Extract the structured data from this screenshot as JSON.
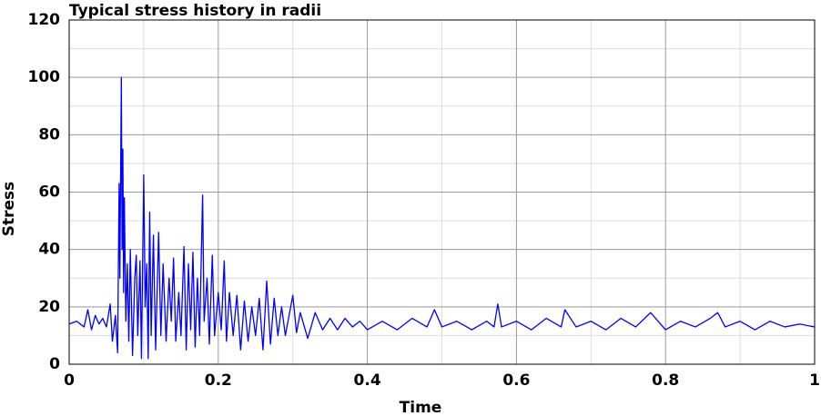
{
  "chart_data": {
    "type": "line",
    "title": "Typical stress history in radii",
    "x_label": "Time",
    "y_label": "Stress",
    "x": [
      0,
      0.01,
      0.02,
      0.025,
      0.03,
      0.035,
      0.04,
      0.045,
      0.05,
      0.055,
      0.058,
      0.062,
      0.065,
      0.067,
      0.068,
      0.07,
      0.071,
      0.072,
      0.073,
      0.074,
      0.076,
      0.078,
      0.08,
      0.082,
      0.085,
      0.088,
      0.09,
      0.092,
      0.095,
      0.097,
      0.1,
      0.102,
      0.104,
      0.106,
      0.108,
      0.11,
      0.113,
      0.116,
      0.12,
      0.123,
      0.126,
      0.13,
      0.134,
      0.137,
      0.14,
      0.143,
      0.147,
      0.15,
      0.154,
      0.157,
      0.16,
      0.163,
      0.166,
      0.169,
      0.172,
      0.175,
      0.179,
      0.181,
      0.185,
      0.188,
      0.192,
      0.195,
      0.2,
      0.204,
      0.208,
      0.211,
      0.215,
      0.22,
      0.225,
      0.23,
      0.235,
      0.24,
      0.245,
      0.25,
      0.255,
      0.26,
      0.265,
      0.27,
      0.275,
      0.28,
      0.285,
      0.29,
      0.3,
      0.305,
      0.31,
      0.32,
      0.33,
      0.34,
      0.35,
      0.36,
      0.37,
      0.38,
      0.39,
      0.4,
      0.42,
      0.44,
      0.46,
      0.48,
      0.49,
      0.5,
      0.52,
      0.54,
      0.56,
      0.57,
      0.575,
      0.58,
      0.6,
      0.62,
      0.64,
      0.66,
      0.665,
      0.68,
      0.7,
      0.72,
      0.74,
      0.76,
      0.78,
      0.8,
      0.82,
      0.84,
      0.86,
      0.87,
      0.88,
      0.9,
      0.92,
      0.94,
      0.96,
      0.98,
      1
    ],
    "series": [
      {
        "color": "#0000ff",
        "values": [
          14,
          15,
          13,
          19,
          12,
          17,
          14,
          16,
          13,
          21,
          8,
          17,
          4,
          63,
          30,
          100,
          40,
          75,
          25,
          58,
          15,
          35,
          8,
          40,
          3,
          30,
          38,
          10,
          36,
          2,
          66,
          20,
          35,
          2,
          53,
          10,
          45,
          5,
          46,
          10,
          35,
          8,
          30,
          15,
          37,
          8,
          25,
          10,
          41,
          5,
          35,
          12,
          39,
          6,
          30,
          10,
          59,
          15,
          30,
          7,
          38,
          10,
          25,
          12,
          36,
          8,
          25,
          10,
          24,
          5,
          22,
          8,
          20,
          10,
          23,
          5,
          29,
          7,
          23,
          10,
          20,
          10,
          24,
          11,
          18,
          9,
          18,
          12,
          16,
          12,
          16,
          13,
          15,
          12,
          15,
          12,
          16,
          13,
          19,
          13,
          15,
          12,
          15,
          13,
          21,
          13,
          15,
          12,
          16,
          13,
          19,
          13,
          15,
          12,
          16,
          13,
          18,
          12,
          15,
          13,
          16,
          18,
          13,
          15,
          12,
          15,
          13,
          14,
          13
        ]
      }
    ],
    "xlim": [
      0,
      1
    ],
    "xticks": [
      0,
      0.2,
      0.4,
      0.6,
      0.8,
      1
    ],
    "xminor": [
      0.1,
      0.3,
      0.5,
      0.7,
      0.9
    ],
    "ylim": [
      0,
      120
    ],
    "yticks": [
      0,
      20,
      40,
      60,
      80,
      100,
      120
    ],
    "yminor": [
      10,
      30,
      50,
      70,
      90,
      110
    ],
    "grid": true
  }
}
